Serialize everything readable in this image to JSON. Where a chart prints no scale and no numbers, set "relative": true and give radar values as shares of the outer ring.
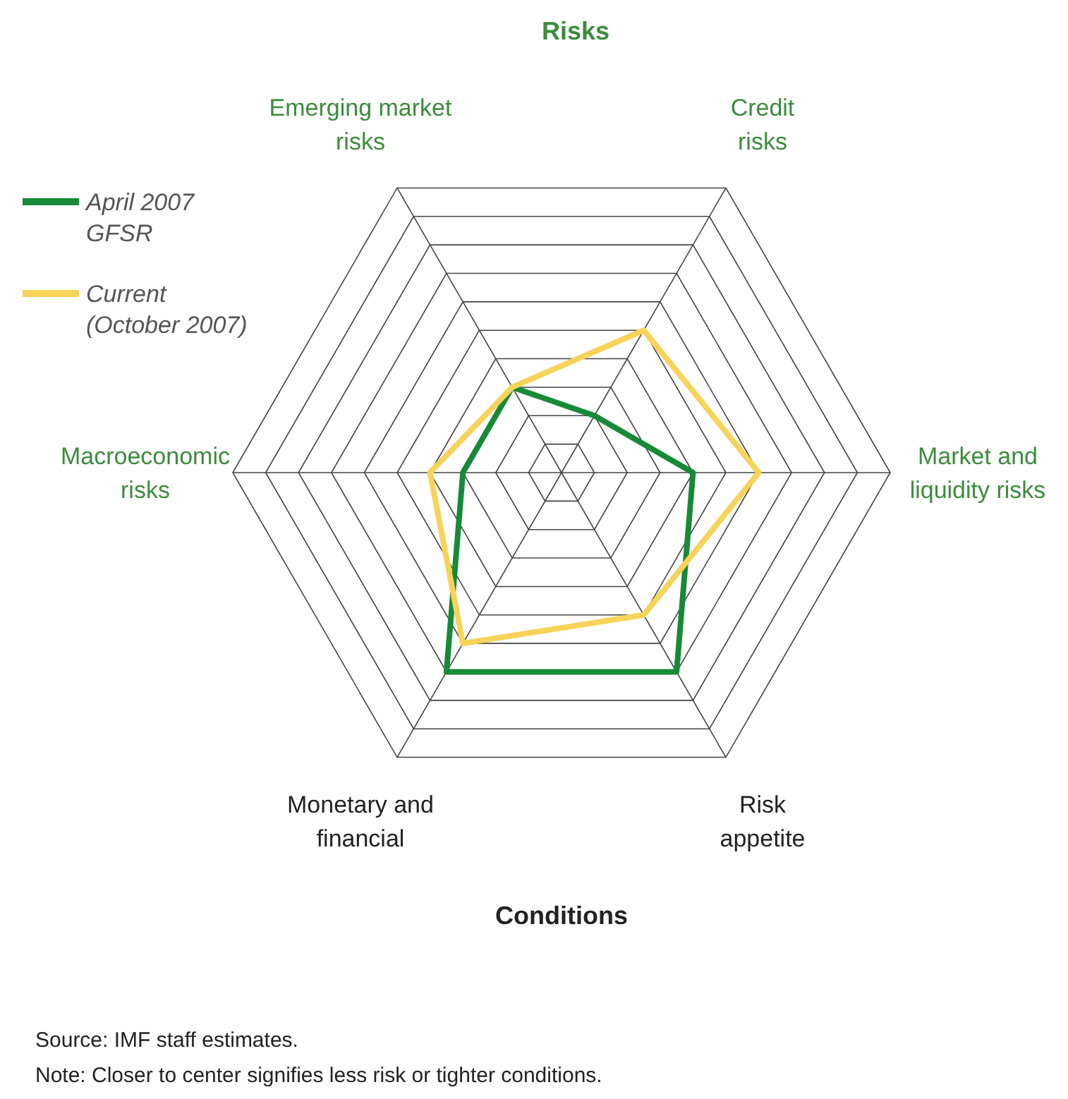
{
  "chart_data": {
    "type": "radar",
    "title": "Risks",
    "relative": true,
    "legend": "top left",
    "categories": [
      "Credit\nrisks",
      "Market and\nliquidity risks",
      "Risk\nappetite",
      "Monetary and\nfinancial",
      "Macroeconomic\nrisks",
      "Emerging market\nrisks"
    ],
    "series": [
      {
        "name": "April 2007\nGFSR",
        "color": "#178a37",
        "values": [
          0.2,
          0.4,
          0.7,
          0.7,
          0.3,
          0.3
        ]
      },
      {
        "name": "Current\n(October 2007)",
        "color": "#f8d35a",
        "values": [
          0.5,
          0.6,
          0.5,
          0.6,
          0.4,
          0.3
        ]
      }
    ],
    "annotations": [
      "Conditions",
      "Source: IMF staff estimates.",
      "Note: Closer to center signifies less risk or tighter conditions."
    ]
  }
}
